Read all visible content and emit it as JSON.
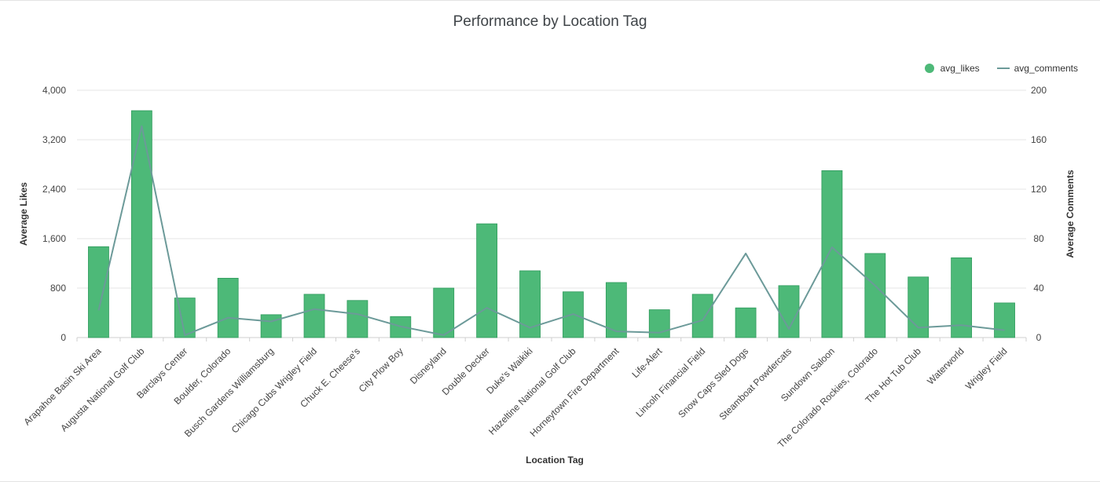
{
  "chart_data": {
    "type": "bar",
    "title": "Performance by Location Tag",
    "xlabel": "Location Tag",
    "ylabel": "Average Likes",
    "y2label": "Average Comments",
    "ylim": [
      0,
      4000
    ],
    "y2lim": [
      0,
      200
    ],
    "yticks": [
      "0",
      "800",
      "1,600",
      "2,400",
      "3,200",
      "4,000"
    ],
    "y2ticks": [
      "0",
      "40",
      "80",
      "120",
      "160",
      "200"
    ],
    "categories": [
      "Arapahoe Basin Ski Area",
      "Augusta National Golf Club",
      "Barclays Center",
      "Boulder, Colorado",
      "Busch Gardens Williamsburg",
      "Chicago Cubs Wrigley Field",
      "Chuck E. Cheese's",
      "City Plow Boy",
      "Disneyland",
      "Double Decker",
      "Duke's Waikiki",
      "Hazeltine National Golf Club",
      "Horneytown Fire Department",
      "Life-Alert",
      "Lincoln Financial Field",
      "Snow Caps Sled Dogs",
      "Steamboat Powdercats",
      "Sundown Saloon",
      "The Colorado Rockies, Colorado",
      "The Hot Tub Club",
      "Waterworld",
      "Wrigley Field"
    ],
    "series": [
      {
        "name": "avg_likes",
        "type": "bar",
        "axis": "left",
        "values": [
          1470,
          3670,
          640,
          960,
          370,
          700,
          600,
          340,
          800,
          1840,
          1080,
          740,
          890,
          450,
          700,
          480,
          840,
          2700,
          1360,
          980,
          1290,
          560
        ]
      },
      {
        "name": "avg_comments",
        "type": "line",
        "axis": "right",
        "values": [
          22,
          171,
          2,
          16,
          13,
          23,
          19,
          9,
          2,
          24,
          8,
          19,
          5,
          4,
          14,
          68,
          7,
          73,
          42,
          8,
          10,
          6
        ]
      }
    ],
    "colors": {
      "bar": "#4db978",
      "bar_edge": "#2f9a5c",
      "line": "#6c9a99"
    },
    "grid": true,
    "legend": "top-right"
  }
}
